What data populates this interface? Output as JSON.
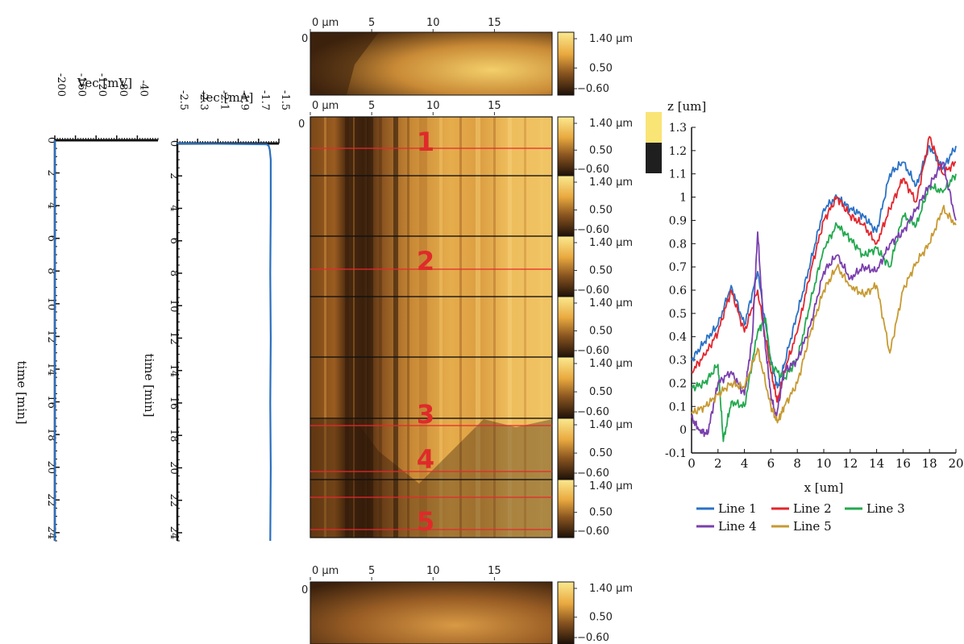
{
  "colors": {
    "trace": "#2a6fbf",
    "afm_dark": "#2c1a0c",
    "afm_mid": "#a8692a",
    "afm_bright": "#f6dc78",
    "scan_line": "#e8282e",
    "frame": "#111111"
  },
  "chart_data": [
    {
      "type": "line",
      "id": "voltage",
      "xlabel": "Vec [mV]",
      "ylabel": "time [min]",
      "xlim": [
        -200,
        0
      ],
      "ylim": [
        0,
        24.5
      ],
      "xticks": [
        "-200",
        "-160",
        "-120",
        "-80",
        "-40"
      ],
      "yticks": [
        "0",
        "2",
        "4",
        "6",
        "8",
        "10",
        "12",
        "14",
        "16",
        "18",
        "20",
        "22",
        "24"
      ],
      "series": [
        {
          "values": [
            [
              -200,
              0
            ],
            [
              -200,
              24.5
            ]
          ]
        }
      ]
    },
    {
      "type": "line",
      "id": "current",
      "xlabel": "Iec [mA]",
      "ylabel": "time [min]",
      "xlim": [
        -2.5,
        -1.5
      ],
      "ylim": [
        0,
        24.5
      ],
      "xticks": [
        "-2.5",
        "-2.3",
        "-2.1",
        "-1.9",
        "-1.7",
        "-1.5"
      ],
      "yticks": [
        "0",
        "2",
        "4",
        "6",
        "8",
        "10",
        "12",
        "14",
        "16",
        "18",
        "20",
        "22",
        "24"
      ],
      "series": [
        {
          "values": [
            [
              -2.5,
              0
            ],
            [
              -1.62,
              0.05
            ],
            [
              -1.6,
              0.15
            ],
            [
              -1.59,
              0.4
            ],
            [
              -1.58,
              1
            ],
            [
              -1.58,
              4
            ],
            [
              -1.585,
              8
            ],
            [
              -1.58,
              12
            ],
            [
              -1.585,
              16
            ],
            [
              -1.58,
              20
            ],
            [
              -1.585,
              24.5
            ]
          ]
        }
      ]
    },
    {
      "type": "heatmap",
      "id": "afm_panels",
      "x_axis_ticks": [
        "0 µm",
        "5",
        "10",
        "15"
      ],
      "y_axis_label": "0",
      "colorbar_ticks": [
        "1.40 µm",
        "0.50",
        "−0.60"
      ],
      "scan_labels": [
        "1",
        "2",
        "3",
        "4",
        "5"
      ]
    },
    {
      "type": "line",
      "id": "profiles",
      "title": "z [um]",
      "xlabel": "x [um]",
      "xlim": [
        0,
        20
      ],
      "ylim": [
        -0.1,
        1.3
      ],
      "xticks": [
        "0",
        "2",
        "4",
        "6",
        "8",
        "10",
        "12",
        "14",
        "16",
        "18",
        "20"
      ],
      "yticks": [
        "-0.1",
        "0",
        "0.1",
        "0.2",
        "0.3",
        "0.4",
        "0.5",
        "0.6",
        "0.7",
        "0.8",
        "0.9",
        "1",
        "1.1",
        "1.2",
        "1.3"
      ],
      "series": [
        {
          "name": "Line 1",
          "color": "#2a72c6",
          "x": [
            0,
            1,
            2,
            3,
            4,
            5,
            6,
            6.5,
            7,
            8,
            9,
            10,
            11,
            12,
            13,
            14,
            15,
            16,
            17,
            18,
            19,
            20
          ],
          "values": [
            0.3,
            0.38,
            0.45,
            0.62,
            0.45,
            0.68,
            0.3,
            0.18,
            0.28,
            0.5,
            0.72,
            0.95,
            1.0,
            0.95,
            0.92,
            0.85,
            1.1,
            1.15,
            1.05,
            1.22,
            1.12,
            1.22
          ]
        },
        {
          "name": "Line 2",
          "color": "#e3262d",
          "x": [
            0,
            1,
            2,
            3,
            4,
            5,
            6,
            6.5,
            7,
            8,
            9,
            10,
            11,
            12,
            13,
            14,
            15,
            16,
            17,
            18,
            19,
            20
          ],
          "values": [
            0.25,
            0.32,
            0.42,
            0.6,
            0.42,
            0.6,
            0.25,
            0.12,
            0.25,
            0.42,
            0.68,
            0.9,
            1.0,
            0.92,
            0.88,
            0.8,
            0.95,
            1.08,
            0.98,
            1.26,
            1.1,
            1.15
          ]
        },
        {
          "name": "Line 3",
          "color": "#23a94f",
          "x": [
            0,
            1,
            2,
            2.4,
            3,
            4,
            5,
            5.6,
            6,
            7,
            8,
            9,
            10,
            11,
            12,
            13,
            14,
            15,
            16,
            17,
            18,
            19,
            20
          ],
          "values": [
            0.18,
            0.2,
            0.28,
            -0.05,
            0.12,
            0.1,
            0.42,
            0.48,
            0.28,
            0.22,
            0.3,
            0.55,
            0.78,
            0.88,
            0.82,
            0.75,
            0.78,
            0.7,
            0.92,
            0.88,
            1.05,
            1.02,
            1.1
          ]
        },
        {
          "name": "Line 4",
          "color": "#7a3fae",
          "x": [
            0,
            0.6,
            1.2,
            2,
            3,
            4,
            4.6,
            5,
            5.5,
            6,
            6.4,
            7,
            8,
            9,
            10,
            11,
            12,
            13,
            14,
            15,
            16,
            17,
            18,
            19,
            20
          ],
          "values": [
            0.05,
            0.0,
            -0.02,
            0.2,
            0.25,
            0.15,
            0.4,
            0.85,
            0.4,
            0.15,
            0.05,
            0.25,
            0.3,
            0.45,
            0.68,
            0.75,
            0.65,
            0.7,
            0.68,
            0.8,
            0.85,
            0.95,
            1.05,
            1.15,
            0.9
          ]
        },
        {
          "name": "Line 5",
          "color": "#c79a32",
          "x": [
            0,
            1,
            2,
            3,
            4,
            5,
            6,
            6.5,
            7,
            8,
            9,
            10,
            11,
            12,
            13,
            14,
            15,
            16,
            17,
            18,
            19,
            20
          ],
          "values": [
            0.07,
            0.1,
            0.15,
            0.2,
            0.18,
            0.35,
            0.1,
            0.03,
            0.1,
            0.2,
            0.42,
            0.6,
            0.7,
            0.62,
            0.58,
            0.62,
            0.33,
            0.6,
            0.72,
            0.8,
            0.95,
            0.88
          ]
        }
      ]
    }
  ]
}
